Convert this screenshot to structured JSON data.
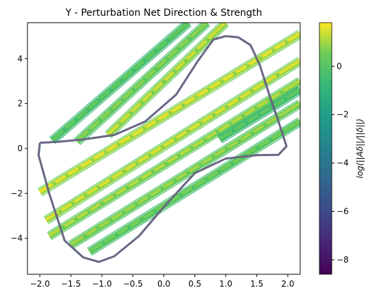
{
  "chart_data": {
    "type": "quiver",
    "title": "Y - Perturbation Net Direction & Strength",
    "xlabel": "",
    "ylabel": "",
    "xlim": [
      -2.2,
      2.2
    ],
    "ylim": [
      -5.6,
      5.6
    ],
    "x_ticks": [
      -2.0,
      -1.5,
      -1.0,
      -0.5,
      0.0,
      0.5,
      1.0,
      1.5,
      2.0
    ],
    "x_tick_labels": [
      "−2.0",
      "−1.5",
      "−1.0",
      "−0.5",
      "0.0",
      "0.5",
      "1.0",
      "1.5",
      "2.0"
    ],
    "y_ticks": [
      -4,
      -2,
      0,
      2,
      4
    ],
    "y_tick_labels": [
      "−4",
      "−2",
      "0",
      "2",
      "4"
    ],
    "colorbar": {
      "label": "log(||Aδ||/||δ||)",
      "range": [
        -8.6,
        1.8
      ],
      "ticks": [
        0,
        -2,
        -4,
        -6,
        -8
      ],
      "tick_labels": [
        "0",
        "−2",
        "−4",
        "−6",
        "−8"
      ],
      "colormap": "viridis"
    },
    "limit_cycle": {
      "color": "#9c5a78",
      "points": [
        [
          -2.0,
          0.25
        ],
        [
          -1.7,
          0.3
        ],
        [
          -1.3,
          0.4
        ],
        [
          -0.8,
          0.6
        ],
        [
          -0.3,
          1.2
        ],
        [
          0.2,
          2.4
        ],
        [
          0.55,
          3.9
        ],
        [
          0.8,
          4.85
        ],
        [
          1.0,
          5.0
        ],
        [
          1.2,
          4.95
        ],
        [
          1.4,
          4.6
        ],
        [
          1.55,
          3.7
        ],
        [
          1.7,
          2.4
        ],
        [
          1.85,
          1.2
        ],
        [
          1.98,
          0.1
        ],
        [
          1.85,
          -0.28
        ],
        [
          1.5,
          -0.3
        ],
        [
          1.0,
          -0.45
        ],
        [
          0.5,
          -1.1
        ],
        [
          0.0,
          -2.6
        ],
        [
          -0.4,
          -3.9
        ],
        [
          -0.8,
          -4.8
        ],
        [
          -1.05,
          -5.05
        ],
        [
          -1.3,
          -4.85
        ],
        [
          -1.6,
          -4.1
        ],
        [
          -1.85,
          -2.0
        ],
        [
          -2.02,
          -0.3
        ],
        [
          -2.0,
          0.25
        ]
      ]
    },
    "flow_bands": [
      {
        "x0": -2.0,
        "y0": -1.95,
        "x1": 2.2,
        "y1": 5.1,
        "strength": 1.6
      },
      {
        "x0": -1.9,
        "y0": -3.2,
        "x1": 2.2,
        "y1": 3.9,
        "strength": 1.5
      },
      {
        "x0": -1.85,
        "y0": -3.9,
        "x1": 2.2,
        "y1": 3.0,
        "strength": 1.2
      },
      {
        "x0": -1.5,
        "y0": -4.3,
        "x1": 2.2,
        "y1": 2.0,
        "strength": 1.0
      },
      {
        "x0": -1.2,
        "y0": -4.6,
        "x1": 2.2,
        "y1": 1.2,
        "strength": 0.6
      },
      {
        "x0": -0.9,
        "y0": 0.6,
        "x1": 1.0,
        "y1": 5.6,
        "strength": 1.4
      },
      {
        "x0": -1.4,
        "y0": 0.3,
        "x1": 0.7,
        "y1": 5.6,
        "strength": 0.8
      },
      {
        "x0": -1.8,
        "y0": 0.35,
        "x1": 0.4,
        "y1": 5.6,
        "strength": 0.3
      },
      {
        "x0": 0.9,
        "y0": 0.4,
        "x1": 2.2,
        "y1": 2.6,
        "strength": 0.2
      }
    ]
  }
}
